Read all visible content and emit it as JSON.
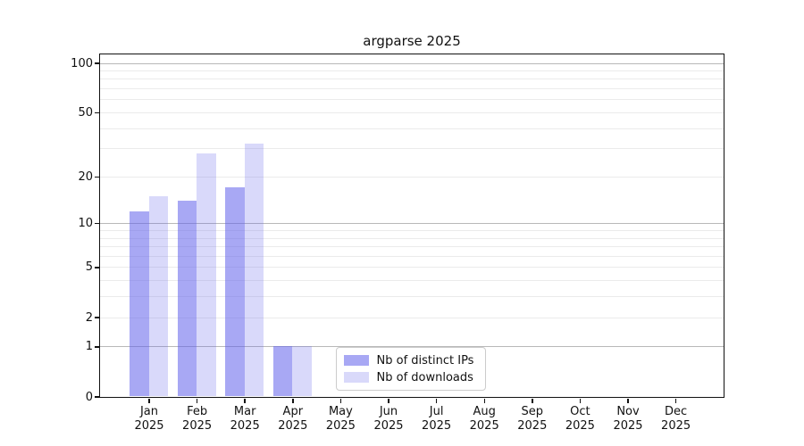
{
  "title": "argparse 2025",
  "chart_data": {
    "type": "bar",
    "title": "argparse 2025",
    "categories": [
      "Jan",
      "Feb",
      "Mar",
      "Apr",
      "May",
      "Jun",
      "Jul",
      "Aug",
      "Sep",
      "Oct",
      "Nov",
      "Dec"
    ],
    "year_label": "2025",
    "series": [
      {
        "name": "Nb of distinct IPs",
        "rgb": "97,97,235",
        "alpha": 0.55,
        "values": [
          12,
          14,
          17,
          1,
          0,
          0,
          0,
          0,
          0,
          0,
          0,
          0
        ]
      },
      {
        "name": "Nb of downloads",
        "rgb": "97,97,235",
        "alpha": 0.24,
        "values": [
          15,
          28,
          32,
          1,
          0,
          0,
          0,
          0,
          0,
          0,
          0,
          0
        ]
      }
    ],
    "yscale": "log1p",
    "ylim": [
      0,
      113.3
    ],
    "yticks": [
      0,
      1,
      2,
      5,
      10,
      20,
      50,
      100
    ],
    "major_gridlines": [
      1,
      10,
      100
    ],
    "minor_gridlines": [
      2,
      3,
      4,
      6,
      7,
      8,
      9,
      20,
      30,
      40,
      50,
      60,
      70,
      80,
      90,
      2,
      5
    ],
    "grid": true,
    "xlabel": "",
    "ylabel": "",
    "legend": {
      "position": "lower center",
      "items": [
        "Nb of distinct IPs",
        "Nb of downloads"
      ]
    }
  },
  "colors": {
    "background": "#ffffff",
    "spine": "#111111",
    "major_grid": "#b8b8b8",
    "minor_grid": "#ebebeb",
    "text": "#111111",
    "legend_border": "#cccccc"
  }
}
